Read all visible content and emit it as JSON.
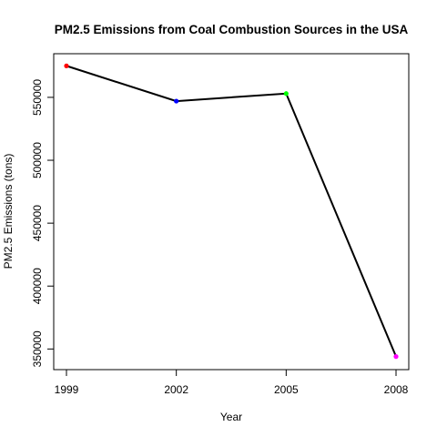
{
  "chart_data": {
    "type": "line",
    "title": "PM2.5 Emissions from Coal Combustion Sources in the USA",
    "xlabel": "Year",
    "ylabel": "PM2.5 Emissions (tons)",
    "x": [
      1999,
      2002,
      2005,
      2008
    ],
    "x_tick_labels": [
      "1999",
      "2002",
      "2005",
      "2008"
    ],
    "y_ticks": [
      350000,
      400000,
      450000,
      500000,
      550000
    ],
    "y_tick_labels": [
      "350000",
      "400000",
      "450000",
      "500000",
      "550000"
    ],
    "series": [
      {
        "values": [
          575000,
          547000,
          553000,
          344000
        ]
      }
    ],
    "point_colors": [
      "#ff0000",
      "#0000ff",
      "#00ff00",
      "#ff00ff"
    ],
    "line_color": "#000000",
    "xlim": [
      1999,
      2008
    ],
    "ylim": [
      343000,
      576000
    ],
    "grid": false,
    "legend": "none"
  }
}
